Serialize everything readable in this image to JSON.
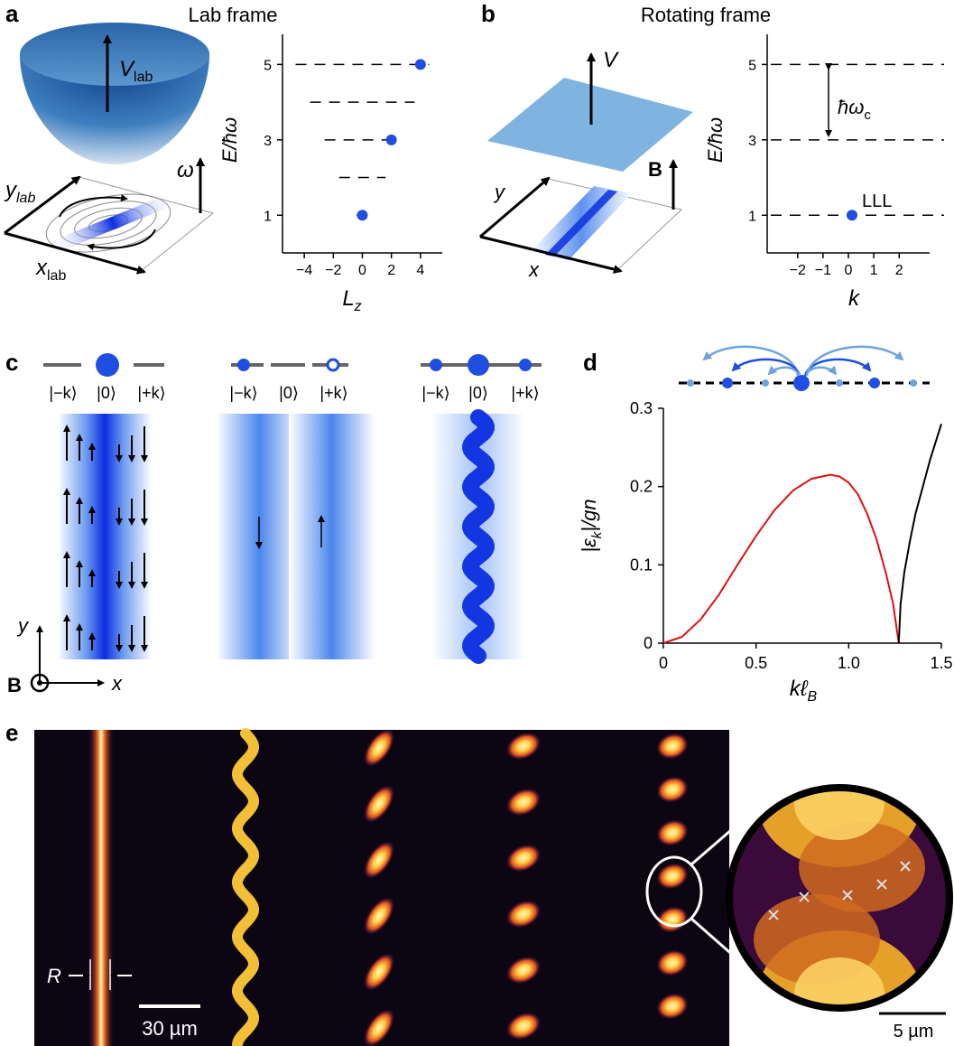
{
  "panels": {
    "a": {
      "letter": "a",
      "title": "Lab frame",
      "bowl_label": "V",
      "bowl_sub": "lab",
      "plane_y": "y",
      "plane_y_sub": "lab",
      "plane_x": "x",
      "plane_x_sub": "lab",
      "omega": "ω",
      "plot_ylabel": "E/ħω",
      "plot_xlabel": "L",
      "plot_xlabel_sub": "z"
    },
    "b": {
      "letter": "b",
      "title": "Rotating frame",
      "plane_label": "V",
      "field_label": "B",
      "axis_y": "y",
      "axis_x": "x",
      "plot_ylabel": "E/ħω",
      "plot_xlabel": "k",
      "gap_label": "ħω",
      "gap_sub": "c",
      "lll_label": "LLL"
    },
    "c": {
      "letter": "c",
      "kets": [
        "|−k⟩",
        "|0⟩",
        "|+k⟩"
      ],
      "axis_y": "y",
      "axis_x": "x",
      "field": "B"
    },
    "d": {
      "letter": "d"
    },
    "e": {
      "letter": "e",
      "radius_label": "R",
      "scale_left": "30 µm",
      "scale_right": "5 µm"
    }
  },
  "colors": {
    "accent": "#1f4fe0",
    "light_blue": "#6fa3e0",
    "plane_blue": "#7fb3e0",
    "red_curve": "#e01010",
    "black": "#000000",
    "image_bg": "#0b0612"
  },
  "chart_data": [
    {
      "type": "scatter",
      "panel": "a",
      "xlabel": "L_z",
      "ylabel": "E/ħω",
      "xticks": [
        -4,
        -2,
        0,
        2,
        4
      ],
      "yticks": [
        1,
        3,
        5
      ],
      "xlim": [
        -5.5,
        5.5
      ],
      "ylim": [
        0,
        5.8
      ],
      "levels": [
        {
          "E": 5,
          "segments": [
            [
              -4.6,
              4.6
            ]
          ]
        },
        {
          "E": 4,
          "segments": [
            [
              -3.6,
              3.6
            ]
          ]
        },
        {
          "E": 3,
          "segments": [
            [
              -2.6,
              2.6
            ]
          ]
        },
        {
          "E": 2,
          "segments": [
            [
              -1.6,
              1.6
            ]
          ]
        },
        {
          "E": 1,
          "segments": [
            [
              -0.4,
              0.4
            ]
          ]
        }
      ],
      "points": [
        {
          "x": 0,
          "y": 1
        },
        {
          "x": 2,
          "y": 3
        },
        {
          "x": 4,
          "y": 5
        }
      ]
    },
    {
      "type": "scatter",
      "panel": "b",
      "xlabel": "k",
      "ylabel": "E/ħω",
      "xticks": [
        -2,
        -1,
        0,
        1,
        2
      ],
      "yticks": [
        1,
        3,
        5
      ],
      "xlim": [
        -3.2,
        3.2
      ],
      "ylim": [
        0,
        5.8
      ],
      "levels": [
        1,
        3,
        5
      ],
      "points": [
        {
          "x": 0,
          "y": 1
        }
      ]
    },
    {
      "type": "line",
      "panel": "d",
      "xlabel": "kℓ_B",
      "ylabel": "|ε_k|/gn",
      "xticks": [
        0,
        0.5,
        1.0,
        1.5
      ],
      "xtick_labels": [
        "0",
        "0.5",
        "1.0",
        "1.5"
      ],
      "yticks": [
        0,
        0.1,
        0.2,
        0.3
      ],
      "ytick_labels": [
        "0",
        "0.1",
        "0.2",
        "0.3"
      ],
      "xlim": [
        0,
        1.5
      ],
      "ylim": [
        0,
        0.3
      ],
      "series": [
        {
          "color": "#e01010",
          "x": [
            0,
            0.1,
            0.2,
            0.3,
            0.4,
            0.5,
            0.6,
            0.7,
            0.8,
            0.9,
            0.95,
            1.0,
            1.05,
            1.1,
            1.15,
            1.2,
            1.24,
            1.27
          ],
          "y": [
            0,
            0.008,
            0.03,
            0.062,
            0.1,
            0.137,
            0.17,
            0.195,
            0.21,
            0.215,
            0.213,
            0.205,
            0.19,
            0.165,
            0.133,
            0.09,
            0.05,
            0
          ]
        },
        {
          "color": "#000000",
          "x": [
            1.27,
            1.28,
            1.3,
            1.33,
            1.36,
            1.4,
            1.44,
            1.48,
            1.5
          ],
          "y": [
            0,
            0.05,
            0.09,
            0.13,
            0.165,
            0.2,
            0.235,
            0.265,
            0.28
          ]
        }
      ]
    }
  ]
}
